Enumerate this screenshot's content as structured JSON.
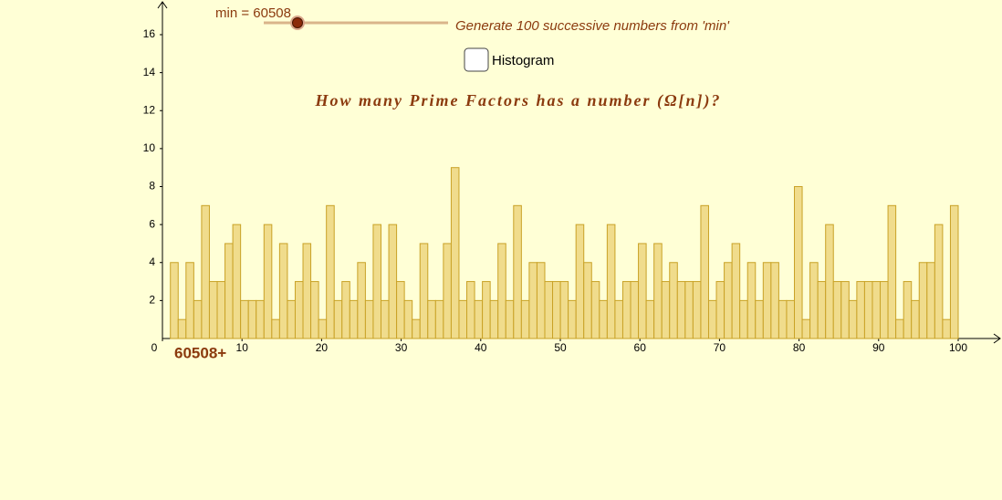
{
  "chart_data": {
    "type": "bar",
    "title": "How many Prime Factors has a number (Ω[n])?",
    "slider_label": "min = 60508",
    "generate_label": "Generate 100 successive numbers from 'min'",
    "checkbox_label": "Histogram",
    "x_axis_label": "60508+",
    "values": [
      4,
      1,
      4,
      2,
      7,
      3,
      3,
      5,
      6,
      2,
      2,
      2,
      6,
      1,
      5,
      2,
      3,
      5,
      3,
      1,
      7,
      2,
      3,
      2,
      4,
      2,
      6,
      2,
      6,
      3,
      2,
      1,
      5,
      2,
      2,
      5,
      9,
      2,
      3,
      2,
      3,
      2,
      5,
      2,
      7,
      2,
      4,
      4,
      3,
      3,
      3,
      2,
      6,
      4,
      3,
      2,
      6,
      2,
      3,
      3,
      5,
      2,
      5,
      3,
      4,
      3,
      3,
      3,
      7,
      2,
      3,
      4,
      5,
      2,
      4,
      2,
      4,
      4,
      2,
      2,
      8,
      1,
      4,
      3,
      6,
      3,
      3,
      2,
      3,
      3,
      3,
      3,
      7,
      1,
      3,
      2,
      4,
      4,
      6,
      1,
      7
    ],
    "color": "#f0dc8c",
    "edge_color": "#c9a227",
    "xlim": [
      0,
      100
    ],
    "xticks": [
      0,
      10,
      20,
      30,
      40,
      50,
      60,
      70,
      80,
      90,
      100
    ],
    "ylim": [
      0,
      16
    ],
    "yticks": [
      2,
      4,
      6,
      8,
      10,
      12,
      14,
      16
    ],
    "grid": false
  }
}
